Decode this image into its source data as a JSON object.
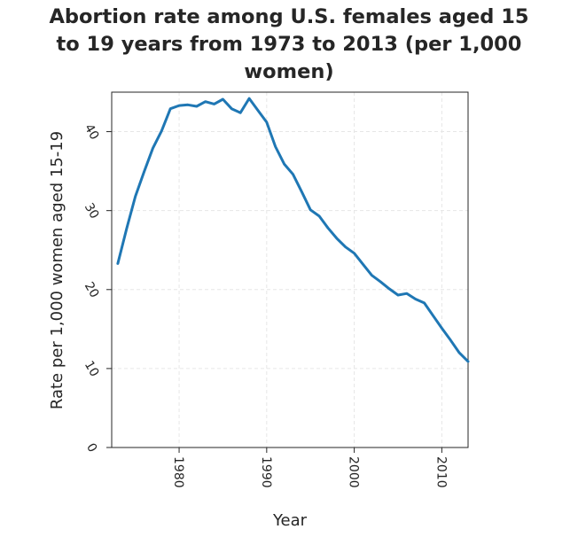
{
  "chart_data": {
    "type": "line",
    "title_lines": [
      "Abortion rate among U.S. females aged 15",
      "to 19 years from 1973 to 2013 (per 1,000",
      "women)"
    ],
    "xlabel": "Year",
    "ylabel": "Rate per 1,000 women aged 15-19",
    "xlim": [
      1972.3,
      2013
    ],
    "ylim": [
      0,
      45
    ],
    "x_ticks": [
      1980,
      1990,
      2000,
      2010
    ],
    "y_ticks": [
      0,
      10,
      20,
      30,
      40
    ],
    "grid": true,
    "line_color": "#1f77b4",
    "series": [
      {
        "x": [
          1973,
          1974,
          1975,
          1976,
          1977,
          1978,
          1979,
          1980,
          1981,
          1982,
          1983,
          1984,
          1985,
          1986,
          1987,
          1988,
          1989,
          1990,
          1991,
          1992,
          1993,
          1994,
          1995,
          1996,
          1997,
          1998,
          1999,
          2000,
          2001,
          2002,
          2003,
          2004,
          2005,
          2006,
          2007,
          2008,
          2009,
          2010,
          2011,
          2012,
          2013
        ],
        "y": [
          23.3,
          27.7,
          31.8,
          34.9,
          37.9,
          40.1,
          42.9,
          43.3,
          43.4,
          43.2,
          43.8,
          43.5,
          44.1,
          42.9,
          42.4,
          44.2,
          42.7,
          41.2,
          38.1,
          35.9,
          34.6,
          32.4,
          30.1,
          29.3,
          27.8,
          26.5,
          25.4,
          24.6,
          23.2,
          21.8,
          21.0,
          20.1,
          19.3,
          19.5,
          18.8,
          18.3,
          16.7,
          15.1,
          13.6,
          12.0,
          10.9
        ]
      }
    ]
  }
}
